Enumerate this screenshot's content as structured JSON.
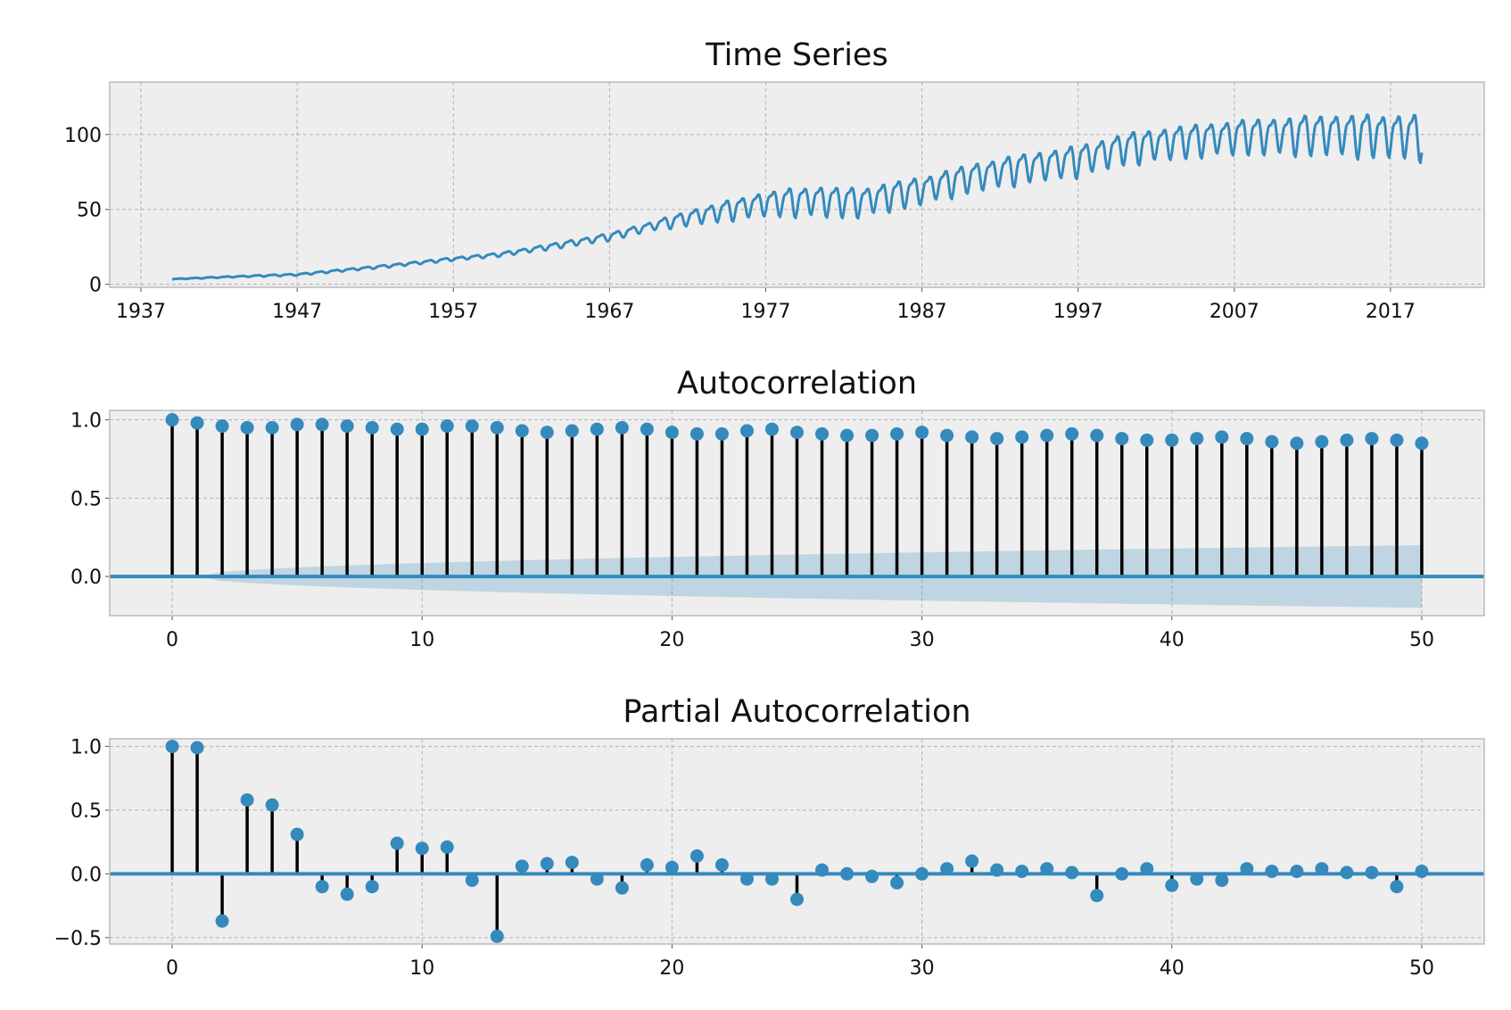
{
  "chart_data": [
    {
      "type": "line",
      "title": "Time Series",
      "xlabel": "",
      "ylabel": "",
      "xlim": [
        1935,
        2023
      ],
      "ylim": [
        -2,
        135
      ],
      "grid": true,
      "x_ticks": [
        1937,
        1947,
        1957,
        1967,
        1977,
        1987,
        1997,
        2007,
        2017
      ],
      "y_ticks": [
        0,
        50,
        100
      ],
      "color": "#348abd",
      "series_model": {
        "frequency": "monthly",
        "start": 1939.0,
        "end": 2019.0,
        "trend_points": [
          [
            1939,
            3.5
          ],
          [
            1944,
            5.5
          ],
          [
            1947,
            6.5
          ],
          [
            1950,
            9.5
          ],
          [
            1953,
            12.5
          ],
          [
            1957,
            17
          ],
          [
            1960,
            20
          ],
          [
            1963,
            25
          ],
          [
            1967,
            32
          ],
          [
            1970,
            40
          ],
          [
            1973,
            47
          ],
          [
            1977,
            55
          ],
          [
            1980,
            57
          ],
          [
            1983,
            56
          ],
          [
            1987,
            64
          ],
          [
            1990,
            72
          ],
          [
            1993,
            78
          ],
          [
            1997,
            84
          ],
          [
            2000,
            92
          ],
          [
            2003,
            96
          ],
          [
            2007,
            100
          ],
          [
            2010,
            101
          ],
          [
            2013,
            102
          ],
          [
            2017,
            101
          ],
          [
            2019,
            101
          ]
        ],
        "seasonal_amplitude_points": [
          [
            1939,
            0.2
          ],
          [
            1960,
            1.2
          ],
          [
            1970,
            3
          ],
          [
            1972,
            5
          ],
          [
            1977,
            8
          ],
          [
            1980,
            10
          ],
          [
            1987,
            9
          ],
          [
            1997,
            10
          ],
          [
            2007,
            11
          ],
          [
            2012,
            13
          ],
          [
            2016,
            14
          ],
          [
            2019,
            15
          ]
        ]
      }
    },
    {
      "type": "stem",
      "title": "Autocorrelation",
      "xlabel": "",
      "ylabel": "",
      "xlim": [
        -2.5,
        52.5
      ],
      "ylim": [
        -0.25,
        1.06
      ],
      "grid": true,
      "x_ticks": [
        0,
        10,
        20,
        30,
        40,
        50
      ],
      "y_ticks": [
        0.0,
        0.5,
        1.0
      ],
      "y_tick_labels": [
        "0.0",
        "0.5",
        "1.0"
      ],
      "confidence_band": {
        "start": 0.0,
        "end": 0.2
      },
      "lags": [
        0,
        1,
        2,
        3,
        4,
        5,
        6,
        7,
        8,
        9,
        10,
        11,
        12,
        13,
        14,
        15,
        16,
        17,
        18,
        19,
        20,
        21,
        22,
        23,
        24,
        25,
        26,
        27,
        28,
        29,
        30,
        31,
        32,
        33,
        34,
        35,
        36,
        37,
        38,
        39,
        40,
        41,
        42,
        43,
        44,
        45,
        46,
        47,
        48,
        49,
        50
      ],
      "values": [
        1.0,
        0.98,
        0.96,
        0.95,
        0.95,
        0.97,
        0.97,
        0.96,
        0.95,
        0.94,
        0.94,
        0.96,
        0.96,
        0.95,
        0.93,
        0.92,
        0.93,
        0.94,
        0.95,
        0.94,
        0.92,
        0.91,
        0.91,
        0.93,
        0.94,
        0.92,
        0.91,
        0.9,
        0.9,
        0.91,
        0.92,
        0.9,
        0.89,
        0.88,
        0.89,
        0.9,
        0.91,
        0.9,
        0.88,
        0.87,
        0.87,
        0.88,
        0.89,
        0.88,
        0.86,
        0.85,
        0.86,
        0.87,
        0.88,
        0.87,
        0.85
      ],
      "marker_color": "#348abd",
      "stem_color": "#000000"
    },
    {
      "type": "stem",
      "title": "Partial Autocorrelation",
      "xlabel": "",
      "ylabel": "",
      "xlim": [
        -2.5,
        52.5
      ],
      "ylim": [
        -0.55,
        1.06
      ],
      "grid": true,
      "x_ticks": [
        0,
        10,
        20,
        30,
        40,
        50
      ],
      "y_ticks": [
        -0.5,
        0.0,
        0.5,
        1.0
      ],
      "y_tick_labels": [
        "−0.5",
        "0.0",
        "0.5",
        "1.0"
      ],
      "lags": [
        0,
        1,
        2,
        3,
        4,
        5,
        6,
        7,
        8,
        9,
        10,
        11,
        12,
        13,
        14,
        15,
        16,
        17,
        18,
        19,
        20,
        21,
        22,
        23,
        24,
        25,
        26,
        27,
        28,
        29,
        30,
        31,
        32,
        33,
        34,
        35,
        36,
        37,
        38,
        39,
        40,
        41,
        42,
        43,
        44,
        45,
        46,
        47,
        48,
        49,
        50
      ],
      "values": [
        1.0,
        0.99,
        -0.37,
        0.58,
        0.54,
        0.31,
        -0.1,
        -0.16,
        -0.1,
        0.24,
        0.2,
        0.21,
        -0.05,
        -0.49,
        0.06,
        0.08,
        0.09,
        -0.04,
        -0.11,
        0.07,
        0.05,
        0.14,
        0.07,
        -0.04,
        -0.04,
        -0.2,
        0.03,
        0.0,
        -0.02,
        -0.07,
        0.0,
        0.04,
        0.1,
        0.03,
        0.02,
        0.04,
        0.01,
        -0.17,
        0.0,
        0.04,
        -0.09,
        -0.04,
        -0.05,
        0.04,
        0.02,
        0.02,
        0.04,
        0.01,
        0.01,
        -0.1,
        0.02
      ],
      "marker_color": "#348abd",
      "stem_color": "#000000"
    }
  ]
}
